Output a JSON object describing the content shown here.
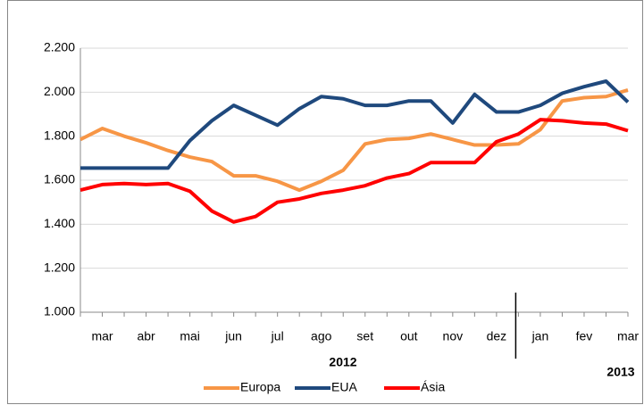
{
  "chart_data": {
    "type": "line",
    "categories": [
      null,
      "mar",
      null,
      "abr",
      null,
      "mai",
      null,
      "jun",
      null,
      "jul",
      null,
      "ago",
      null,
      "set",
      null,
      "out",
      null,
      "nov",
      null,
      "dez",
      null,
      "jan",
      null,
      "fev",
      null,
      "mar"
    ],
    "year_labels": [
      "2012",
      "2013"
    ],
    "series": [
      {
        "name": "Europa",
        "color": "#f79646",
        "values": [
          1785,
          1835,
          1800,
          1770,
          1735,
          1705,
          1685,
          1620,
          1620,
          1595,
          1555,
          1595,
          1645,
          1765,
          1785,
          1790,
          1810,
          1785,
          1760,
          1760,
          1765,
          1830,
          1960,
          1975,
          1980,
          2010
        ]
      },
      {
        "name": "EUA",
        "color": "#1f497d",
        "values": [
          1655,
          1655,
          1655,
          1655,
          1655,
          1780,
          1870,
          1940,
          1895,
          1850,
          1925,
          1980,
          1970,
          1940,
          1940,
          1960,
          1960,
          1860,
          1990,
          1910,
          1910,
          1940,
          1995,
          2025,
          2050,
          1955
        ]
      },
      {
        "name": "Ásia",
        "color": "#ff0000",
        "values": [
          1555,
          1580,
          1585,
          1580,
          1585,
          1550,
          1460,
          1410,
          1435,
          1500,
          1515,
          1540,
          1555,
          1575,
          1610,
          1630,
          1680,
          1680,
          1680,
          1775,
          1810,
          1875,
          1870,
          1860,
          1855,
          1825
        ]
      }
    ],
    "ylim": [
      1000,
      2200
    ],
    "yticks": [
      {
        "value": 1000,
        "label": "1.000"
      },
      {
        "value": 1200,
        "label": "1.200"
      },
      {
        "value": 1400,
        "label": "1.400"
      },
      {
        "value": 1600,
        "label": "1.600"
      },
      {
        "value": 1800,
        "label": "1.800"
      },
      {
        "value": 2000,
        "label": "2.000"
      },
      {
        "value": 2200,
        "label": "2.200"
      }
    ],
    "grid": true
  }
}
